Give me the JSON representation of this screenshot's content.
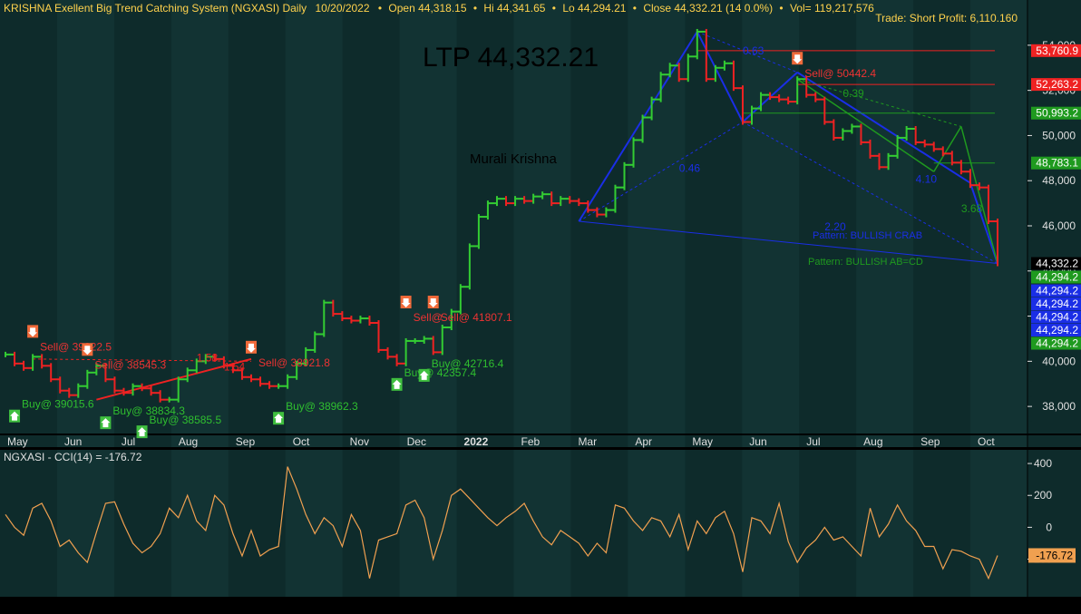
{
  "header": {
    "symbol_title": "KRISHNA Exellent Big Trend Catching System (NGXASI) Daily",
    "date": "10/20/2022",
    "open": "Open 44,318.15",
    "high": "Hi 44,341.65",
    "low": "Lo 44,294.21",
    "close": "Close 44,332.21 (14 0.0%)",
    "volume": "Vol= 119,217,576",
    "trade_info": "Trade: Short Profit: 6,110.160"
  },
  "colors": {
    "background": "#0e2b2b",
    "background_alt": "#123333",
    "up_bar": "#33cc33",
    "down_bar": "#ee2222",
    "harmonic_blue": "#1a2ee6",
    "harmonic_green": "#1f9a1f",
    "cci_line": "#f0a050",
    "header_text": "#ffd24d",
    "axis_text": "#e0e0e0",
    "sell_label": "#ee3333",
    "buy_label": "#2fbf2f"
  },
  "ltp_label": "LTP 44,332.21",
  "watermark": "Murali Krishna",
  "chart_data": [
    {
      "type": "line",
      "subtype": "price_bars",
      "title": "KRISHNA Exellent Big Trend Catching System (NGXASI) Daily",
      "x_labels": [
        "May",
        "Jun",
        "Jul",
        "Aug",
        "Sep",
        "Oct",
        "Nov",
        "Dec",
        "2022",
        "Feb",
        "Mar",
        "Apr",
        "May",
        "Jun",
        "Jul",
        "Aug",
        "Sep",
        "Oct"
      ],
      "ylim": [
        36800,
        55200
      ],
      "y_ticks": [
        38000,
        40000,
        42000,
        44000,
        46000,
        48000,
        50000,
        52000,
        54000
      ],
      "y_tick_labels": [
        "38,000",
        "40,000",
        "42,000",
        "44,000",
        "46,000",
        "48,000",
        "50,000",
        "52,000",
        "54,000"
      ],
      "grid": false,
      "series": [
        {
          "values": [
            40300,
            39900,
            39700,
            40200,
            39800,
            39200,
            38700,
            38500,
            38900,
            39500,
            39800,
            39200,
            38700,
            38600,
            38900,
            38800,
            38600,
            38300,
            38300,
            39200,
            39600,
            40000,
            40200,
            40100,
            39800,
            39600,
            39300,
            39200,
            39000,
            38900,
            38900,
            39300,
            39900,
            40500,
            41200,
            42600,
            42100,
            41900,
            41800,
            41900,
            41700,
            40500,
            40200,
            39900,
            40900,
            40900,
            41000,
            40400,
            41500,
            42200,
            43300,
            45100,
            46400,
            47000,
            47200,
            47000,
            47200,
            47100,
            47300,
            47400,
            47000,
            47200,
            47100,
            47000,
            46700,
            46500,
            46700,
            47700,
            48700,
            49800,
            50800,
            51600,
            52700,
            53100,
            52500,
            53500,
            54600,
            52500,
            53000,
            53200,
            52100,
            50600,
            51200,
            51800,
            51700,
            51600,
            51500,
            52500,
            51800,
            51600,
            50600,
            49900,
            50200,
            50400,
            49700,
            49100,
            48600,
            49100,
            49900,
            50300,
            49700,
            49600,
            49400,
            49200,
            48800,
            48400,
            47800,
            47700,
            46200,
            44332
          ],
          "up": [
            true,
            false,
            false,
            true,
            false,
            false,
            false,
            false,
            true,
            true,
            true,
            false,
            false,
            false,
            true,
            false,
            false,
            false,
            true,
            true,
            true,
            true,
            true,
            false,
            false,
            false,
            false,
            false,
            false,
            false,
            true,
            true,
            true,
            true,
            true,
            true,
            false,
            false,
            false,
            true,
            false,
            false,
            false,
            false,
            true,
            true,
            true,
            false,
            true,
            true,
            true,
            true,
            true,
            true,
            true,
            false,
            true,
            false,
            true,
            true,
            false,
            true,
            false,
            false,
            false,
            false,
            true,
            true,
            true,
            true,
            true,
            true,
            true,
            true,
            false,
            true,
            true,
            false,
            true,
            true,
            false,
            false,
            true,
            true,
            false,
            false,
            false,
            true,
            false,
            false,
            false,
            false,
            true,
            true,
            false,
            false,
            false,
            true,
            true,
            true,
            false,
            false,
            false,
            false,
            false,
            false,
            false,
            false,
            false,
            false
          ]
        }
      ],
      "price_badges": [
        {
          "value": 53760.9,
          "text": "53,760.9",
          "color": "#ee2222"
        },
        {
          "value": 52263.2,
          "text": "52,263.2",
          "color": "#ee2222"
        },
        {
          "value": 50993.2,
          "text": "50,993.2",
          "color": "#1f9a1f"
        },
        {
          "value": 48783.1,
          "text": "48,783.1",
          "color": "#1f9a1f"
        },
        {
          "value": 44332.2,
          "text": "44,332.2",
          "color": "#000000"
        },
        {
          "value": 44294.2,
          "text": "44,294.2",
          "color": "#1f9a1f"
        }
      ],
      "stacked_badges": [
        {
          "text": "44,294.2",
          "color": "#1a2ee6"
        },
        {
          "text": "44,294.2",
          "color": "#1a2ee6"
        },
        {
          "text": "44,294.2",
          "color": "#1a2ee6"
        },
        {
          "text": "44,294.2",
          "color": "#1a2ee6"
        },
        {
          "text": "44,294.2",
          "color": "#1f9a1f"
        }
      ],
      "signals": [
        {
          "text": "Sell@ 39022.5",
          "kind": "sell",
          "bar": 3,
          "price": 40400
        },
        {
          "text": "Sell@ 38545.3",
          "kind": "sell",
          "bar": 9,
          "price": 39600
        },
        {
          "text": "Sell@ 38921.8",
          "kind": "sell",
          "bar": 27,
          "price": 39700
        },
        {
          "text": "Sell@",
          "kind": "sell",
          "bar": 44,
          "price": 41700
        },
        {
          "text": "Sell@ 41807.1",
          "kind": "sell",
          "bar": 47,
          "price": 41700
        },
        {
          "text": "Sell@ 50442.4",
          "kind": "sell",
          "bar": 87,
          "price": 52500
        },
        {
          "text": "Buy@ 39015.6",
          "kind": "buy",
          "bar": 1,
          "price": 38500
        },
        {
          "text": "Buy@ 38834.3",
          "kind": "buy",
          "bar": 11,
          "price": 38200
        },
        {
          "text": "Buy@ 38585.5",
          "kind": "buy",
          "bar": 15,
          "price": 37800
        },
        {
          "text": "Buy@ 38962.3",
          "kind": "buy",
          "bar": 30,
          "price": 38400
        },
        {
          "text": "Buy@ 42357.4",
          "kind": "buy",
          "bar": 43,
          "price": 39900
        },
        {
          "text": "Buy@ 42716.4",
          "kind": "buy",
          "bar": 46,
          "price": 40300
        }
      ],
      "annotations": [
        {
          "text": "0.63",
          "bar": 81,
          "price": 53600,
          "color": "#1a2ee6"
        },
        {
          "text": "0.39",
          "bar": 92,
          "price": 51700,
          "color": "#1f9a1f"
        },
        {
          "text": "0.46",
          "bar": 74,
          "price": 48400,
          "color": "#1a2ee6"
        },
        {
          "text": "4.10",
          "bar": 100,
          "price": 47900,
          "color": "#1a2ee6"
        },
        {
          "text": "3.68",
          "bar": 105,
          "price": 46600,
          "color": "#1f9a1f"
        },
        {
          "text": "1.58",
          "bar": 21,
          "price": 40000,
          "color": "#ee2222"
        },
        {
          "text": "1.54",
          "bar": 24,
          "price": 39600,
          "color": "#ee2222"
        },
        {
          "text": "2.20",
          "bar": 90,
          "price": 45800,
          "color": "#1a2ee6"
        }
      ],
      "pattern_labels": [
        {
          "text": "Pattern: BULLISH CRAB",
          "color": "#1a2ee6"
        },
        {
          "text": "Pattern: BULLISH AB=CD",
          "color": "#1f9a1f"
        }
      ]
    },
    {
      "type": "line",
      "title": "NGXASI - CCI(14) = -176.72",
      "series_name": "CCI(14)",
      "last_value": "-176.72",
      "ylim": [
        -430,
        480
      ],
      "y_ticks": [
        -200,
        0,
        200,
        400
      ],
      "y_tick_labels": [
        "-200",
        "0",
        "200",
        "400"
      ],
      "values": [
        80,
        0,
        -50,
        120,
        150,
        40,
        -120,
        -80,
        -160,
        -220,
        -30,
        150,
        160,
        20,
        -100,
        -160,
        -120,
        -40,
        120,
        60,
        200,
        40,
        -20,
        200,
        140,
        -40,
        -180,
        -20,
        -180,
        -140,
        -120,
        380,
        240,
        80,
        -40,
        60,
        10,
        -120,
        80,
        -20,
        -320,
        -80,
        -60,
        -40,
        140,
        170,
        60,
        -200,
        -20,
        200,
        240,
        180,
        120,
        60,
        10,
        60,
        100,
        150,
        40,
        -60,
        -110,
        -20,
        -60,
        -100,
        -180,
        -100,
        -160,
        140,
        120,
        40,
        -20,
        60,
        40,
        -60,
        80,
        -140,
        40,
        -40,
        60,
        100,
        -40,
        -280,
        60,
        40,
        -40,
        150,
        -90,
        -220,
        -130,
        -80,
        0,
        -80,
        -60,
        -120,
        -180,
        120,
        -60,
        20,
        140,
        40,
        -20,
        -120,
        -120,
        -260,
        -140,
        -150,
        -180,
        -200,
        -320,
        -176.72
      ]
    }
  ]
}
